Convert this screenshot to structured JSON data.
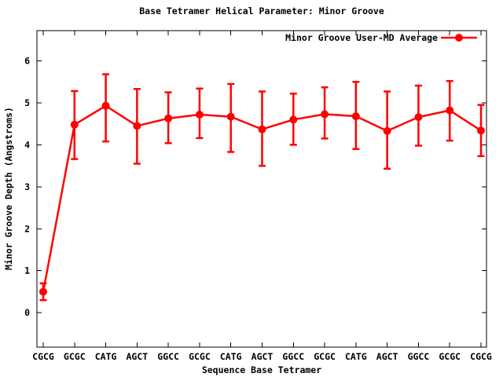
{
  "chart_data": {
    "type": "line",
    "title": "Base Tetramer Helical Parameter: Minor Groove",
    "xlabel": "Sequence Base Tetramer",
    "ylabel": "Minor Groove Depth (Angstroms)",
    "legend": {
      "label": "Minor Groove User-MD Average",
      "position": "top-right-inside",
      "marker": "filled-circle-on-line"
    },
    "categories": [
      "CGCG",
      "GCGC",
      "CATG",
      "AGCT",
      "GGCC",
      "GCGC",
      "CATG",
      "AGCT",
      "GGCC",
      "GCGC",
      "CATG",
      "AGCT",
      "GGCC",
      "GCGC",
      "CGCG"
    ],
    "series": [
      {
        "name": "Minor Groove User-MD Average",
        "values": [
          0.5,
          4.48,
          4.93,
          4.45,
          4.63,
          4.72,
          4.67,
          4.37,
          4.6,
          4.73,
          4.68,
          4.33,
          4.66,
          4.82,
          4.34
        ],
        "error_low": [
          0.3,
          3.66,
          4.08,
          3.55,
          4.04,
          4.16,
          3.83,
          3.5,
          4.0,
          4.15,
          3.9,
          3.43,
          3.98,
          4.1,
          3.73
        ],
        "error_high": [
          0.7,
          5.28,
          5.68,
          5.33,
          5.25,
          5.34,
          5.45,
          5.27,
          5.22,
          5.37,
          5.5,
          5.27,
          5.41,
          5.52,
          4.95
        ],
        "color": "#ff0000",
        "marker": "filled-circle",
        "error_bars": true
      }
    ],
    "yticks": [
      0,
      1,
      2,
      3,
      4,
      5,
      6
    ],
    "ylim": [
      -0.82,
      6.72
    ],
    "grid": false,
    "legend_box": false,
    "colors": {
      "background": "#ffffff",
      "foreground": "#000000",
      "series": "#ff0000"
    }
  }
}
